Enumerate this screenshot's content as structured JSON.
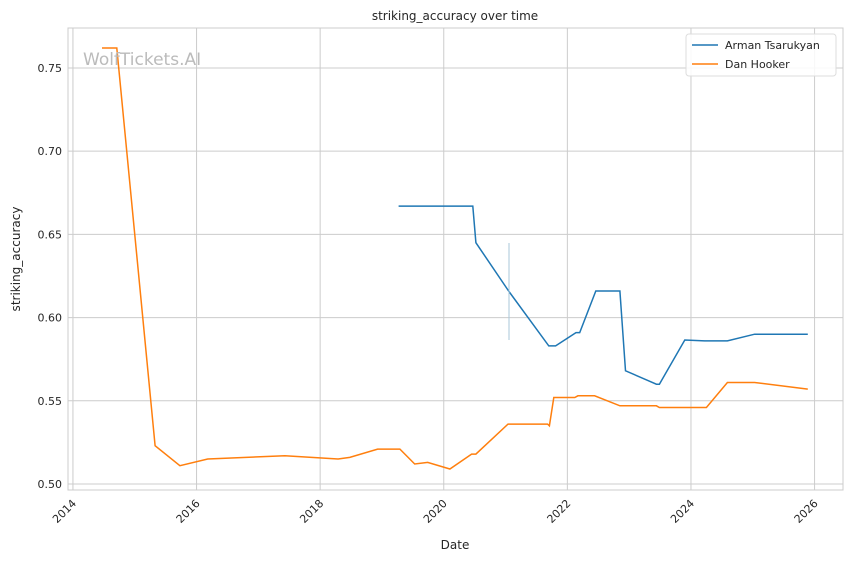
{
  "watermark": "WolfTickets.AI",
  "chart_data": {
    "type": "line",
    "title": "striking_accuracy over time",
    "xlabel": "Date",
    "ylabel": "striking_accuracy",
    "xlim": [
      2013.92,
      2026.46
    ],
    "ylim": [
      0.4964,
      0.774
    ],
    "xticks": [
      2014,
      2016,
      2018,
      2020,
      2022,
      2024,
      2026
    ],
    "xtick_labels": [
      "2014",
      "2016",
      "2018",
      "2020",
      "2022",
      "2024",
      "2026"
    ],
    "yticks": [
      0.5,
      0.55,
      0.6,
      0.65,
      0.7,
      0.75
    ],
    "ytick_labels": [
      "0.50",
      "0.55",
      "0.60",
      "0.65",
      "0.70",
      "0.75"
    ],
    "grid": true,
    "legend_position": "top-right",
    "series": [
      {
        "name": "Arman Tsarukyan",
        "color": "#1f77b4",
        "x": [
          2019.27,
          2020.47,
          2020.52,
          2021.05,
          2021.7,
          2021.81,
          2022.14,
          2022.2,
          2022.46,
          2022.85,
          2022.94,
          2023.44,
          2023.49,
          2023.9,
          2024.22,
          2024.59,
          2025.03,
          2025.89
        ],
        "y": [
          0.667,
          0.667,
          0.645,
          0.616,
          0.583,
          0.583,
          0.591,
          0.591,
          0.616,
          0.616,
          0.568,
          0.56,
          0.56,
          0.5865,
          0.586,
          0.586,
          0.59,
          0.59
        ]
      },
      {
        "name": "Dan Hooker",
        "color": "#ff7f0e",
        "x": [
          2014.47,
          2014.71,
          2015.33,
          2015.73,
          2016.18,
          2017.43,
          2018.29,
          2018.48,
          2018.93,
          2019.29,
          2019.53,
          2019.74,
          2020.1,
          2020.45,
          2020.52,
          2021.04,
          2021.68,
          2021.71,
          2021.78,
          2022.12,
          2022.17,
          2022.44,
          2022.85,
          2023.44,
          2023.49,
          2024.25,
          2024.59,
          2025.03,
          2025.89
        ],
        "y": [
          0.762,
          0.762,
          0.523,
          0.511,
          0.515,
          0.517,
          0.515,
          0.516,
          0.521,
          0.521,
          0.512,
          0.513,
          0.509,
          0.518,
          0.518,
          0.536,
          0.536,
          0.535,
          0.552,
          0.552,
          0.553,
          0.553,
          0.547,
          0.547,
          0.546,
          0.546,
          0.561,
          0.561,
          0.557
        ]
      }
    ]
  }
}
